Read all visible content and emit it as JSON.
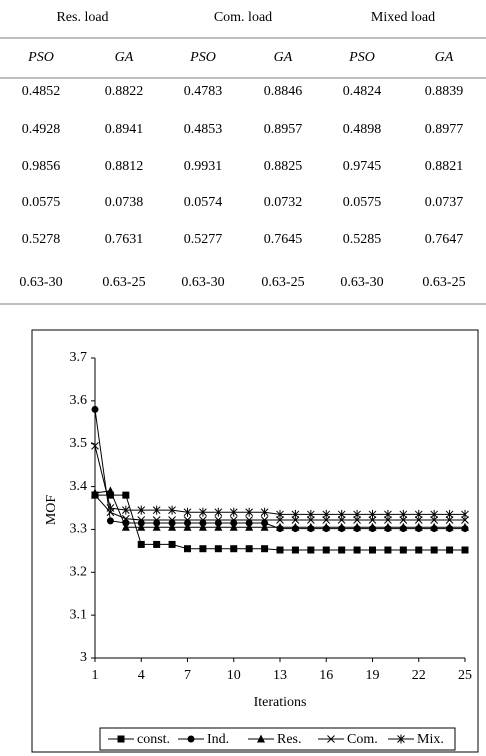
{
  "table": {
    "groups": [
      "Res. load",
      "Com. load",
      "Mixed load"
    ],
    "subheaders": [
      "PSO",
      "GA",
      "PSO",
      "GA",
      "PSO",
      "GA"
    ],
    "rows": [
      [
        "0.4852",
        "0.8822",
        "0.4783",
        "0.8846",
        "0.4824",
        "0.8839"
      ],
      [
        "0.4928",
        "0.8941",
        "0.4853",
        "0.8957",
        "0.4898",
        "0.8977"
      ],
      [
        "0.9856",
        "0.8812",
        "0.9931",
        "0.8825",
        "0.9745",
        "0.8821"
      ],
      [
        "0.0575",
        "0.0738",
        "0.0574",
        "0.0732",
        "0.0575",
        "0.0737"
      ],
      [
        "0.5278",
        "0.7631",
        "0.5277",
        "0.7645",
        "0.5285",
        "0.7647"
      ],
      [
        "0.63-30",
        "0.63-25",
        "0.63-30",
        "0.63-25",
        "0.63-30",
        "0.63-25"
      ]
    ]
  },
  "chart_data": {
    "type": "line",
    "x_label": "Iterations",
    "y_label": "MOF",
    "x": [
      1,
      2,
      3,
      4,
      5,
      6,
      7,
      8,
      9,
      10,
      11,
      12,
      13,
      14,
      15,
      16,
      17,
      18,
      19,
      20,
      21,
      22,
      23,
      24,
      25
    ],
    "xlim": [
      1,
      25
    ],
    "xticks": [
      1,
      4,
      7,
      10,
      13,
      16,
      19,
      22,
      25
    ],
    "ylim": [
      3,
      3.7
    ],
    "yticks": [
      3,
      3.1,
      3.2,
      3.3,
      3.4,
      3.5,
      3.6,
      3.7
    ],
    "series": [
      {
        "name": "const.",
        "color": "#000000",
        "marker": "square",
        "values": [
          3.38,
          3.38,
          3.38,
          3.265,
          3.265,
          3.265,
          3.255,
          3.255,
          3.255,
          3.255,
          3.255,
          3.255,
          3.252,
          3.252,
          3.252,
          3.252,
          3.252,
          3.252,
          3.252,
          3.252,
          3.252,
          3.252,
          3.252,
          3.252,
          3.252
        ]
      },
      {
        "name": "Ind.",
        "color": "#000000",
        "marker": "circle",
        "values": [
          3.58,
          3.32,
          3.315,
          3.315,
          3.315,
          3.315,
          3.315,
          3.315,
          3.315,
          3.315,
          3.315,
          3.315,
          3.302,
          3.302,
          3.302,
          3.302,
          3.302,
          3.302,
          3.302,
          3.302,
          3.302,
          3.302,
          3.302,
          3.302,
          3.302
        ]
      },
      {
        "name": "Res.",
        "color": "#000000",
        "marker": "triangle",
        "values": [
          3.385,
          3.39,
          3.305,
          3.305,
          3.305,
          3.305,
          3.305,
          3.305,
          3.305,
          3.305,
          3.305,
          3.305,
          3.305,
          3.305,
          3.305,
          3.305,
          3.305,
          3.305,
          3.305,
          3.305,
          3.305,
          3.305,
          3.305,
          3.305,
          3.305
        ]
      },
      {
        "name": "Com.",
        "color": "#000000",
        "marker": "x",
        "values": [
          3.38,
          3.34,
          3.325,
          3.322,
          3.322,
          3.322,
          3.322,
          3.322,
          3.322,
          3.322,
          3.322,
          3.322,
          3.322,
          3.322,
          3.322,
          3.322,
          3.322,
          3.322,
          3.322,
          3.322,
          3.322,
          3.322,
          3.322,
          3.322,
          3.322
        ]
      },
      {
        "name": "Mix.",
        "color": "#000000",
        "marker": "star",
        "values": [
          3.495,
          3.35,
          3.345,
          3.345,
          3.345,
          3.345,
          3.34,
          3.34,
          3.34,
          3.34,
          3.34,
          3.34,
          3.335,
          3.335,
          3.335,
          3.335,
          3.335,
          3.335,
          3.335,
          3.335,
          3.335,
          3.335,
          3.335,
          3.335,
          3.335
        ]
      }
    ]
  }
}
